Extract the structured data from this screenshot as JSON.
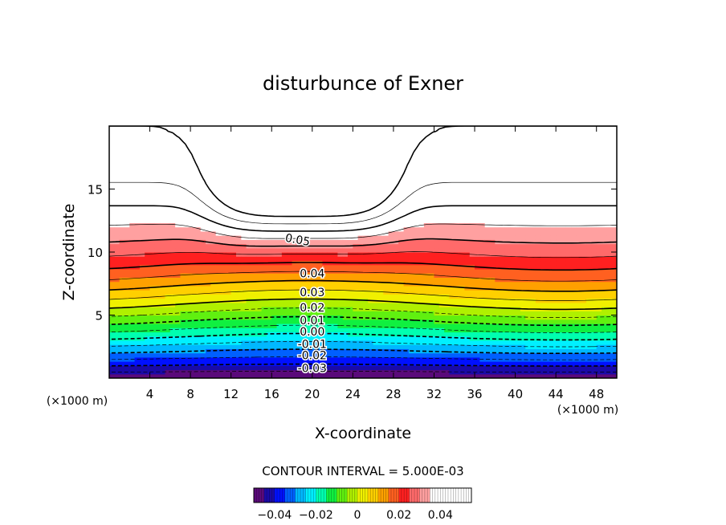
{
  "chart_data": {
    "type": "heatmap",
    "title": "disturbunce of Exner",
    "xlabel": "X-coordinate",
    "ylabel": "Z-coordinate",
    "x_unit": "(×1000 m)",
    "y_unit": "(×1000 m)",
    "xlim": [
      0,
      50
    ],
    "ylim": [
      0,
      20
    ],
    "x_ticks": [
      4,
      8,
      12,
      16,
      20,
      24,
      28,
      32,
      36,
      40,
      44,
      48
    ],
    "y_ticks": [
      5,
      10,
      15
    ],
    "x_tick_labels": [
      "4",
      "8",
      "12",
      "16",
      "20",
      "24",
      "28",
      "32",
      "36",
      "40",
      "44",
      "48"
    ],
    "y_tick_labels": [
      "5",
      "10",
      "15"
    ],
    "contour_interval_text": "CONTOUR INTERVAL = 5.000E-03",
    "contour_interval": 0.005,
    "value_range": [
      -0.05,
      0.055
    ],
    "contour_labels": [
      {
        "text": "0.05",
        "x": 18.5,
        "z": 11.0
      },
      {
        "text": "0.04",
        "x": 20.0,
        "z": 8.3
      },
      {
        "text": "0.03",
        "x": 20.0,
        "z": 6.8
      },
      {
        "text": "0.02",
        "x": 20.0,
        "z": 5.6
      },
      {
        "text": "0.01",
        "x": 20.0,
        "z": 4.6
      },
      {
        "text": "0.00",
        "x": 20.0,
        "z": 3.7
      },
      {
        "text": "-0.01",
        "x": 20.0,
        "z": 2.7
      },
      {
        "text": "-0.02",
        "x": 20.0,
        "z": 1.8
      },
      {
        "text": "-0.03",
        "x": 20.0,
        "z": 0.8
      }
    ],
    "colorbar": {
      "min": -0.05,
      "max": 0.055,
      "tick_values": [
        -0.04,
        -0.02,
        0,
        0.02,
        0.04
      ],
      "tick_labels": [
        "−0.04",
        "−0.02",
        "0",
        "0.02",
        "0.04"
      ]
    },
    "colors": [
      "#5a0a7a",
      "#1a0aa8",
      "#0010ff",
      "#0060ff",
      "#00b8ff",
      "#00f0ff",
      "#00ffb0",
      "#10f040",
      "#60f010",
      "#b0f000",
      "#f0f000",
      "#ffd000",
      "#ffa000",
      "#ff6020",
      "#ff2020",
      "#ff6a6a",
      "#ffa0a0",
      "#ffffff"
    ]
  }
}
